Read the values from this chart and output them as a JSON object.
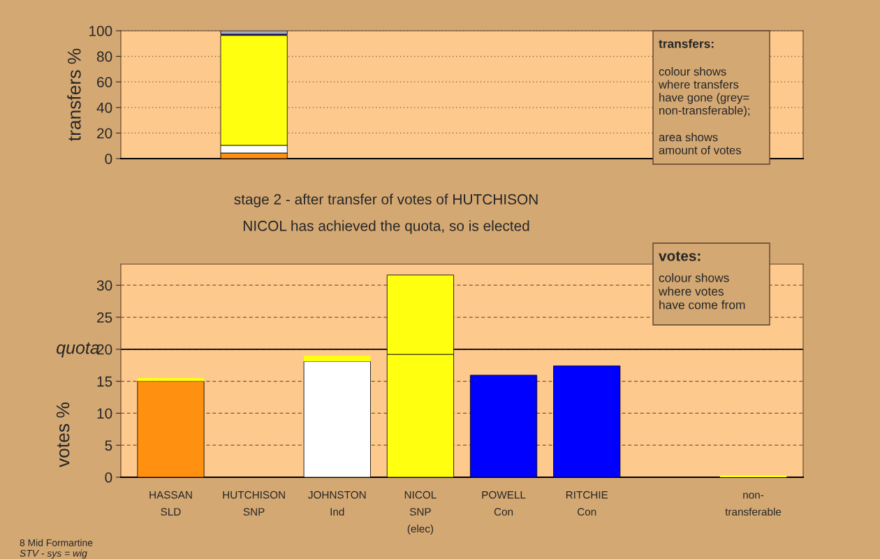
{
  "chart_data": [
    {
      "type": "bar",
      "stacked": true,
      "ylabel": "transfers %",
      "tick_labels": "y",
      "categories": [
        null,
        null,
        null,
        null,
        null,
        null,
        null,
        null
      ],
      "series": [
        {
          "color": "#ff9010",
          "values": [
            null,
            4.4,
            null,
            null,
            null,
            null,
            null,
            null
          ]
        },
        {
          "color": "#ffffff",
          "values": [
            null,
            6.0,
            null,
            null,
            null,
            null,
            null,
            null
          ]
        },
        {
          "color": "#ffff10",
          "values": [
            null,
            85.9,
            null,
            null,
            null,
            null,
            null,
            null
          ]
        },
        {
          "color": "#10107a",
          "values": [
            null,
            1.0,
            null,
            null,
            null,
            null,
            null,
            null
          ]
        },
        {
          "color": "#a8acb8",
          "values": [
            null,
            2.7,
            null,
            null,
            null,
            null,
            null,
            null
          ]
        }
      ],
      "ylim": [
        0,
        100
      ],
      "yticks": [
        0,
        20,
        40,
        60,
        80,
        100
      ],
      "grid": "y",
      "annotations": [
        "transfers:",
        "colour shows\nwhere transfers\nhave gone (grey=\nnon-transferable);",
        "area shows\namount of votes"
      ]
    },
    {
      "type": "bar",
      "stacked": true,
      "ylabel": "votes %",
      "title": "stage 2 - after transfer of votes of HUTCHISON",
      "subtitle": "NICOL has achieved the quota, so is elected",
      "categories": [
        "HASSAN\nSLD",
        "HUTCHISON\nSNP",
        "JOHNSTON\nInd",
        "NICOL\nSNP\n(elec)",
        "POWELL\nCon",
        "RITCHIE\nCon",
        null,
        "non-\ntransferable"
      ],
      "series": [
        {
          "colors": [
            "#ff9010",
            "#ffff10",
            "#ffffff",
            "#ffff10",
            "#0000ff",
            "#0000ff",
            "#ffffff",
            "#ffff10"
          ],
          "values": [
            15.0,
            null,
            18.1,
            19.2,
            15.9,
            17.4,
            null,
            null
          ]
        },
        {
          "colors": [
            "#ffff10",
            "#ffff10",
            "#ffff10",
            "#ffff10",
            "#10107a",
            "#ffff10",
            "#ffff10",
            "#ffff10"
          ],
          "values": [
            0.5,
            null,
            0.9,
            12.4,
            0.1,
            null,
            null,
            0.3
          ]
        }
      ],
      "ylim": [
        0,
        33.3
      ],
      "yticks": [
        0,
        5,
        10,
        15,
        20,
        25,
        30
      ],
      "grid": "y",
      "ref_lines": [
        {
          "axis": "y",
          "value": 20,
          "label": "quota"
        }
      ],
      "annotations": [
        "votes:",
        "colour shows\nwhere votes\nhave come from",
        "8 Mid Formartine",
        "STV - sys = wig"
      ]
    }
  ]
}
